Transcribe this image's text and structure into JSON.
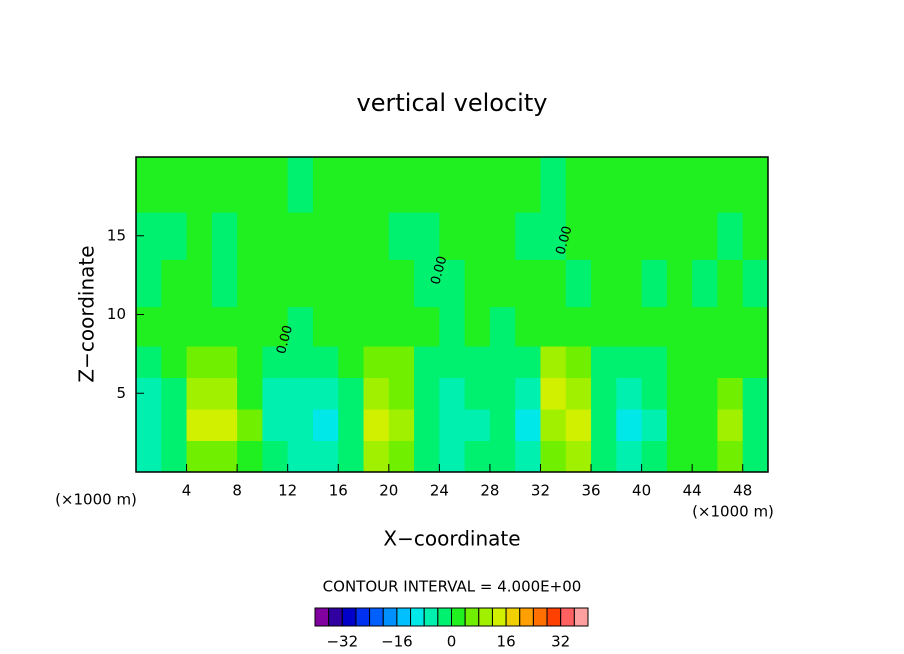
{
  "chart_data": {
    "type": "contour",
    "title": "vertical velocity",
    "x_label": "X−coordinate",
    "y_label": "Z−coordinate",
    "x_unit": "(×1000 m)",
    "y_unit": "(×1000 m)",
    "info_label": "CONTOUR INTERVAL = 4.000E+00",
    "xlim": [
      0,
      50
    ],
    "ylim": [
      0,
      20
    ],
    "xticks": [
      4,
      8,
      12,
      16,
      20,
      24,
      28,
      32,
      36,
      40,
      44,
      48
    ],
    "yticks": [
      5,
      10,
      15
    ],
    "x": [
      1,
      3,
      5,
      7,
      9,
      11,
      13,
      15,
      17,
      19,
      21,
      23,
      25,
      27,
      29,
      31,
      33,
      35,
      37,
      39,
      41,
      43,
      45,
      47,
      49
    ],
    "z": [
      1,
      3,
      5,
      7,
      9,
      12,
      15,
      18
    ],
    "field": [
      [
        -6,
        -4,
        6,
        6,
        2,
        -4,
        -6,
        -8,
        -2,
        8,
        4,
        -2,
        -6,
        -4,
        -2,
        -8,
        6,
        8,
        -2,
        -8,
        -4,
        2,
        2,
        4,
        -2
      ],
      [
        -8,
        -2,
        12,
        12,
        4,
        -6,
        -6,
        -10,
        -2,
        14,
        8,
        -4,
        -8,
        -6,
        -4,
        -12,
        10,
        14,
        -4,
        -12,
        -6,
        2,
        2,
        10,
        -4
      ],
      [
        -6,
        -2,
        10,
        8,
        2,
        -8,
        -8,
        -6,
        -2,
        10,
        6,
        -4,
        -6,
        -4,
        -4,
        -8,
        12,
        10,
        -4,
        -8,
        -4,
        2,
        2,
        6,
        -2
      ],
      [
        -2,
        2,
        6,
        4,
        2,
        -4,
        -4,
        -2,
        2,
        6,
        4,
        -2,
        -2,
        -2,
        -2,
        -4,
        8,
        4,
        -2,
        -4,
        -2,
        2,
        2,
        2,
        2
      ],
      [
        2,
        2,
        2,
        2,
        2,
        2,
        -2,
        2,
        2,
        2,
        2,
        2,
        -2,
        2,
        -2,
        2,
        2,
        2,
        2,
        2,
        2,
        2,
        2,
        2,
        2
      ],
      [
        -2,
        2,
        2,
        -2,
        2,
        2,
        2,
        2,
        2,
        2,
        2,
        -2,
        -2,
        2,
        2,
        2,
        2,
        -2,
        2,
        2,
        -2,
        2,
        -2,
        2,
        -2
      ],
      [
        -2,
        -2,
        2,
        -2,
        2,
        2,
        2,
        2,
        2,
        2,
        -2,
        -2,
        2,
        2,
        2,
        -2,
        -2,
        2,
        2,
        2,
        2,
        2,
        2,
        -2,
        2
      ],
      [
        2,
        2,
        2,
        2,
        2,
        2,
        -2,
        2,
        2,
        2,
        2,
        2,
        2,
        2,
        2,
        2,
        -2,
        2,
        2,
        2,
        2,
        2,
        2,
        2,
        2
      ]
    ],
    "contour_labels": [
      {
        "text": "0.00",
        "x": 11.8,
        "z": 8.4
      },
      {
        "text": "0.00",
        "x": 24,
        "z": 12.8
      },
      {
        "text": "0.00",
        "x": 33.9,
        "z": 14.7
      }
    ],
    "colorbar": {
      "levels": [
        -40,
        -36,
        -32,
        -28,
        -24,
        -20,
        -16,
        -12,
        -8,
        -4,
        0,
        4,
        8,
        12,
        16,
        20,
        24,
        28,
        32,
        36,
        40
      ],
      "colors": [
        "#8000a0",
        "#3000a0",
        "#0000c8",
        "#0030f0",
        "#0060ff",
        "#0090ff",
        "#00c0ff",
        "#00e8e8",
        "#00f0b0",
        "#00f070",
        "#20f020",
        "#70f000",
        "#a0f000",
        "#d0f000",
        "#f0d000",
        "#ffa000",
        "#ff7000",
        "#ff4000",
        "#ff6060",
        "#ffa0a0"
      ],
      "ticks": [
        {
          "value": -32,
          "label": "−32"
        },
        {
          "value": -16,
          "label": "−16"
        },
        0,
        16,
        32
      ]
    }
  }
}
